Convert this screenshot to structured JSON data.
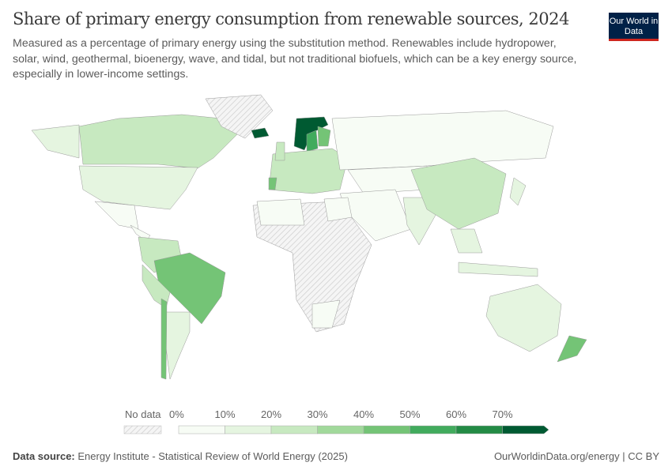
{
  "header": {
    "title": "Share of primary energy consumption from renewable sources, 2024",
    "subtitle": "Measured as a percentage of primary energy using the substitution method. Renewables include hydropower, solar, wind, geothermal, bioenergy, wave, and tidal, but not traditional biofuels, which can be a key energy source, especially in lower-income settings.",
    "logo": "Our World in Data"
  },
  "legend": {
    "no_data_label": "No data",
    "bins": [
      "0%",
      "10%",
      "20%",
      "30%",
      "40%",
      "50%",
      "60%",
      "70%"
    ],
    "colors": [
      "#f7fcf5",
      "#e5f5e0",
      "#c7e9c0",
      "#a1d99b",
      "#74c476",
      "#41ab5d",
      "#238b45",
      "#005a32"
    ],
    "no_data_color": "#e6e6e6"
  },
  "footer": {
    "source_label": "Data source:",
    "source": "Energy Institute - Statistical Review of World Energy (2025)",
    "link": "OurWorldinData.org/energy | CC BY"
  }
}
